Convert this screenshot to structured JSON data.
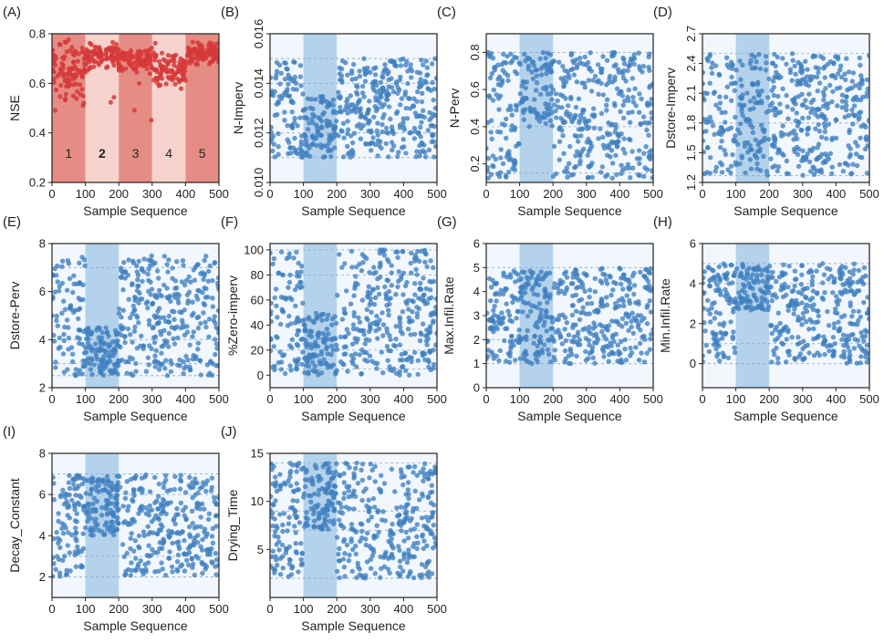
{
  "figure": {
    "x_label": "Sample Sequence",
    "x_ticks": [
      0,
      100,
      200,
      300,
      400,
      500
    ],
    "colors": {
      "point_blue": "#3f7fbf",
      "highlight_band": "#5b9bd5",
      "panel_bg": "#f1f7fc",
      "grid": "#8aa6c8",
      "point_red": "#d63a3a",
      "nse_band_dark": "#e58d85",
      "nse_band_light": "#f6d3cc",
      "label_selected": "#111111",
      "label_other": "#8a8a8a"
    }
  },
  "chart_data": [
    {
      "id": "nse",
      "letter": "(A)",
      "type": "scatter",
      "ylabel": "NSE",
      "xlim": [
        0,
        500
      ],
      "ylim": [
        0.2,
        0.8
      ],
      "yticks": [
        0.2,
        0.4,
        0.6,
        0.8
      ],
      "ytick_labels": [
        "0.2",
        "0.4",
        "0.6",
        "0.8"
      ],
      "gridlines": [],
      "rotated_ticks": false,
      "segments": [
        {
          "label": "1",
          "x": [
            0,
            100
          ],
          "mean": 0.65,
          "spread": 0.06,
          "selected": false
        },
        {
          "label": "2",
          "x": [
            100,
            200
          ],
          "mean": 0.715,
          "spread": 0.02,
          "selected": true
        },
        {
          "label": "3",
          "x": [
            200,
            300
          ],
          "mean": 0.695,
          "spread": 0.025,
          "selected": false
        },
        {
          "label": "4",
          "x": [
            300,
            400
          ],
          "mean": 0.655,
          "spread": 0.04,
          "selected": false
        },
        {
          "label": "5",
          "x": [
            400,
            500
          ],
          "mean": 0.72,
          "spread": 0.02,
          "selected": false
        }
      ],
      "n_points": 500
    },
    {
      "id": "n-imperv",
      "letter": "(B)",
      "type": "scatter",
      "ylabel": "N-Imperv",
      "xlim": [
        0,
        500
      ],
      "ylim": [
        0.01,
        0.016
      ],
      "yticks": [
        0.01,
        0.012,
        0.014,
        0.016
      ],
      "ytick_labels": [
        "0.010",
        "0.012",
        "0.014",
        "0.016"
      ],
      "rotated_ticks": true,
      "gridlines": [
        0.011,
        0.012,
        0.014,
        0.015
      ],
      "highlight": [
        100,
        200
      ],
      "range": [
        0.011,
        0.015
      ],
      "highlight_range": [
        0.011,
        0.0135
      ],
      "n_points": 500
    },
    {
      "id": "n-perv",
      "letter": "(C)",
      "type": "scatter",
      "ylabel": "N-Perv",
      "xlim": [
        0,
        500
      ],
      "ylim": [
        0.1,
        0.9
      ],
      "yticks": [
        0.2,
        0.4,
        0.6,
        0.8
      ],
      "ytick_labels": [
        "0.2",
        "0.4",
        "0.6",
        "0.8"
      ],
      "rotated_ticks": true,
      "gridlines": [
        0.15,
        0.4,
        0.8
      ],
      "highlight": [
        100,
        200
      ],
      "range": [
        0.12,
        0.8
      ],
      "highlight_range": [
        0.4,
        0.8
      ],
      "n_points": 500
    },
    {
      "id": "dstore-imperv",
      "letter": "(D)",
      "type": "scatter",
      "ylabel": "Dstore-Imperv",
      "xlim": [
        0,
        500
      ],
      "ylim": [
        1.2,
        2.7
      ],
      "yticks": [
        1.2,
        1.5,
        1.8,
        2.1,
        2.4,
        2.7
      ],
      "ytick_labels": [
        "1.2",
        "1.5",
        "1.8",
        "2.1",
        "2.4",
        "2.7"
      ],
      "rotated_ticks": true,
      "gridlines": [
        1.27,
        1.8,
        2.5
      ],
      "highlight": [
        100,
        200
      ],
      "range": [
        1.27,
        2.5
      ],
      "highlight_range": [
        1.27,
        2.5
      ],
      "n_points": 500
    },
    {
      "id": "dstore-perv",
      "letter": "(E)",
      "type": "scatter",
      "ylabel": "Dstore-Perv",
      "xlim": [
        0,
        500
      ],
      "ylim": [
        2,
        8
      ],
      "yticks": [
        2,
        4,
        6,
        8
      ],
      "ytick_labels": [
        "2",
        "4",
        "6",
        "8"
      ],
      "rotated_ticks": false,
      "gridlines": [
        2.5,
        3,
        4,
        7
      ],
      "highlight": [
        100,
        200
      ],
      "range": [
        2.5,
        7.5
      ],
      "highlight_range": [
        2.5,
        4.5
      ],
      "n_points": 500
    },
    {
      "id": "zero-imperv",
      "letter": "(F)",
      "type": "scatter",
      "ylabel": "%Zero-imperv",
      "xlim": [
        0,
        500
      ],
      "ylim": [
        -10,
        105
      ],
      "yticks": [
        0,
        20,
        40,
        60,
        80,
        100
      ],
      "ytick_labels": [
        "0",
        "20",
        "40",
        "60",
        "80",
        "100"
      ],
      "rotated_ticks": false,
      "gridlines": [
        5,
        20,
        80,
        100
      ],
      "highlight": [
        100,
        200
      ],
      "range": [
        0,
        100
      ],
      "highlight_range": [
        0,
        50
      ],
      "n_points": 500
    },
    {
      "id": "max-infil-rate",
      "letter": "(G)",
      "type": "scatter",
      "ylabel": "Max.Infil.Rate",
      "xlim": [
        0,
        500
      ],
      "ylim": [
        0,
        6
      ],
      "yticks": [
        0,
        1,
        2,
        3,
        4,
        5,
        6
      ],
      "ytick_labels": [
        "0",
        "1",
        "2",
        "3",
        "4",
        "5",
        "6"
      ],
      "rotated_ticks": false,
      "gridlines": [
        1,
        2,
        5
      ],
      "highlight": [
        100,
        200
      ],
      "range": [
        1,
        5
      ],
      "highlight_range": [
        1,
        5
      ],
      "n_points": 500
    },
    {
      "id": "min-infil-rate",
      "letter": "(H)",
      "type": "scatter",
      "ylabel": "Min.Infil.Rate",
      "xlim": [
        0,
        500
      ],
      "ylim": [
        -1.2,
        6
      ],
      "yticks": [
        0,
        2,
        4,
        6
      ],
      "ytick_labels": [
        "0",
        "2",
        "4",
        "6"
      ],
      "rotated_ticks": false,
      "gridlines": [
        0,
        1,
        4,
        5
      ],
      "highlight": [
        100,
        200
      ],
      "range": [
        0,
        5
      ],
      "highlight_range": [
        2.5,
        5
      ],
      "n_points": 500
    },
    {
      "id": "decay-constant",
      "letter": "(I)",
      "type": "scatter",
      "ylabel": "Decay_Constant",
      "xlim": [
        0,
        500
      ],
      "ylim": [
        1,
        8
      ],
      "yticks": [
        2,
        4,
        6,
        8
      ],
      "ytick_labels": [
        "2",
        "4",
        "6",
        "8"
      ],
      "rotated_ticks": false,
      "gridlines": [
        2,
        3,
        6,
        7
      ],
      "highlight": [
        100,
        200
      ],
      "range": [
        2,
        7
      ],
      "highlight_range": [
        4,
        7
      ],
      "n_points": 500
    },
    {
      "id": "drying-time",
      "letter": "(J)",
      "type": "scatter",
      "ylabel": "Drying_Time",
      "xlim": [
        0,
        500
      ],
      "ylim": [
        0,
        15
      ],
      "yticks": [
        5,
        10,
        15
      ],
      "ytick_labels": [
        "5",
        "10",
        "15"
      ],
      "rotated_ticks": false,
      "gridlines": [
        2,
        7,
        9,
        14
      ],
      "highlight": [
        100,
        200
      ],
      "range": [
        2,
        14
      ],
      "highlight_range": [
        7,
        14
      ],
      "n_points": 500
    }
  ]
}
